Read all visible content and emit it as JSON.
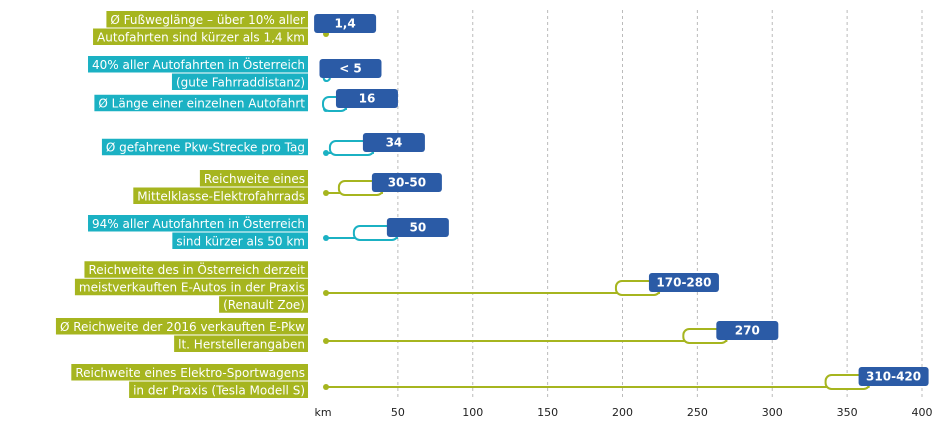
{
  "chart_data": {
    "type": "range-bar",
    "xlabel": "km",
    "xlim": [
      0,
      400
    ],
    "xticks": [
      50,
      100,
      150,
      200,
      250,
      300,
      350,
      400
    ],
    "grid": true,
    "badge_color": "#2b5ba6",
    "rows": [
      {
        "label": [
          "Ø Fußweglänge – über 10% aller",
          "Autofahrten sind kürzer als 1,4 km"
        ],
        "value": 1.4,
        "value_label": "1,4",
        "color": "#a6b51f"
      },
      {
        "label": [
          "40% aller Autofahrten in Österreich",
          "(gute Fahrraddistanz)"
        ],
        "value": 5,
        "value_label": "< 5",
        "color": "#1bb1c3"
      },
      {
        "label": [
          "Ø Länge einer einzelnen Autofahrt"
        ],
        "value": 16,
        "value_label": "16",
        "color": "#1bb1c3"
      },
      {
        "label": [
          "Ø gefahrene Pkw-Strecke pro Tag"
        ],
        "value": 34,
        "value_label": "34",
        "color": "#1bb1c3"
      },
      {
        "label": [
          "Reichweite eines",
          "Mittelklasse-Elektrofahrrads"
        ],
        "low": 30,
        "high": 50,
        "value_label": "30-50",
        "color": "#a6b51f"
      },
      {
        "label": [
          "94% aller Autofahrten in Österreich",
          "sind kürzer als 50 km"
        ],
        "value": 50,
        "value_label": "50",
        "color": "#1bb1c3"
      },
      {
        "label": [
          "Reichweite des in Österreich derzeit",
          "meistverkauften E-Autos in der Praxis",
          "(Renault Zoe)"
        ],
        "low": 170,
        "high": 280,
        "value_label": "170-280",
        "color": "#a6b51f"
      },
      {
        "label": [
          "Ø Reichweite der 2016 verkauften E-Pkw",
          "lt. Herstellerangaben"
        ],
        "value": 270,
        "value_label": "270",
        "color": "#a6b51f"
      },
      {
        "label": [
          "Reichweite eines Elektro-Sportwagens",
          "in der Praxis (Tesla Modell S)"
        ],
        "low": 310,
        "high": 420,
        "value_label": "310-420",
        "color": "#a6b51f"
      }
    ]
  }
}
